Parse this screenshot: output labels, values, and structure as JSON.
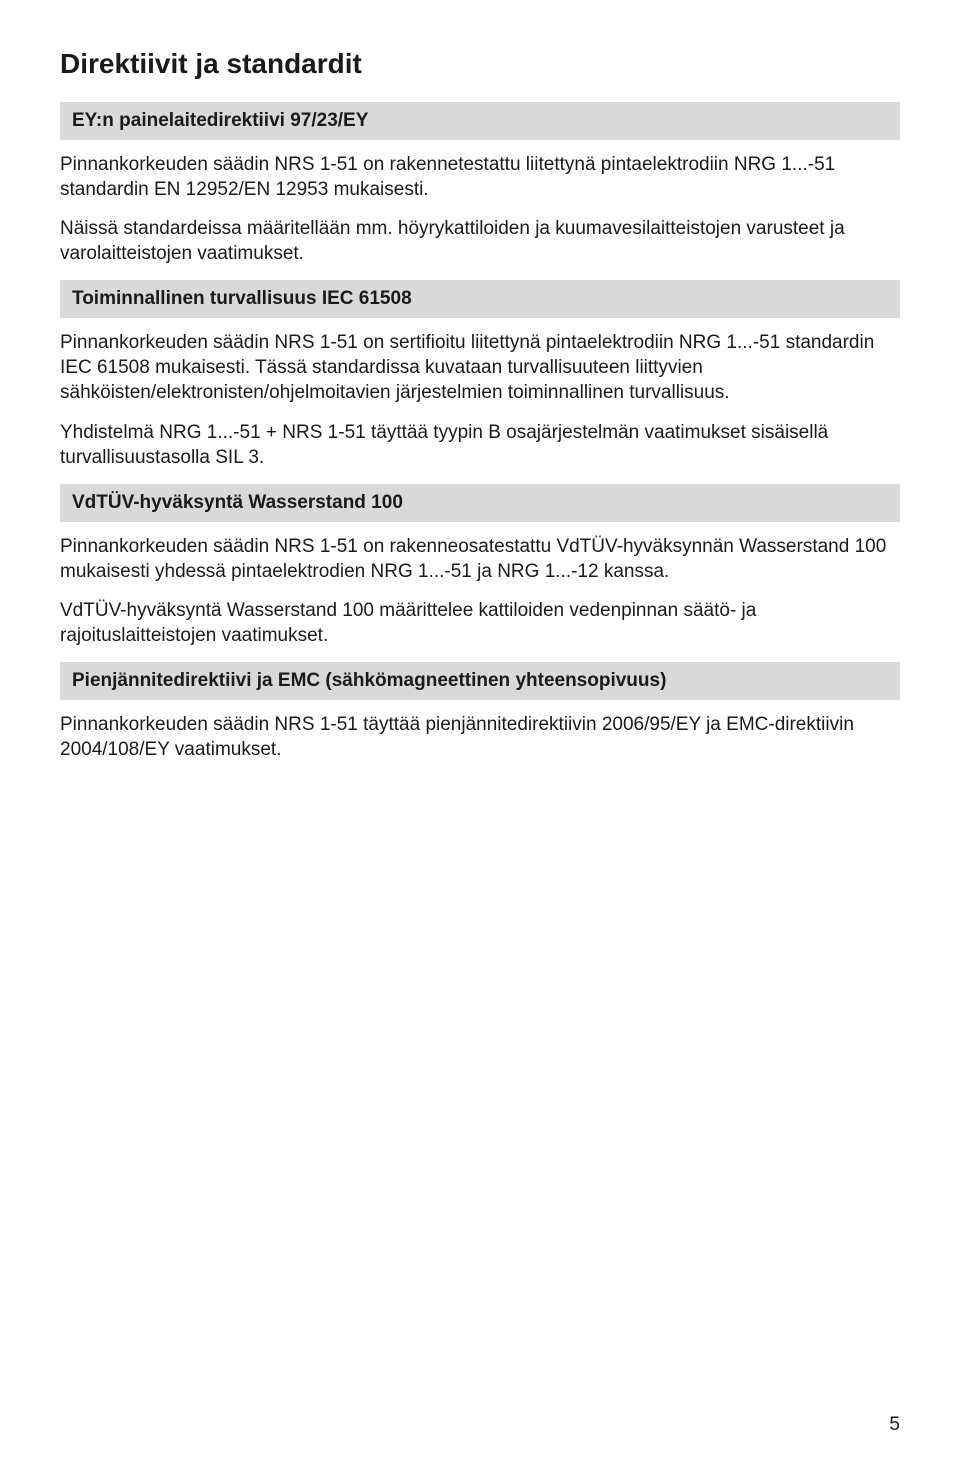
{
  "title": "Direktiivit ja standardit",
  "sections": [
    {
      "heading": "EY:n painelaitedirektiivi 97/23/EY",
      "paragraphs": [
        "Pinnankorkeuden säädin NRS 1-51 on rakennetestattu liitettynä pintaelektrodiin NRG 1...-51 standardin EN 12952/EN 12953 mukaisesti.",
        "Näissä standardeissa määritellään mm. höyrykattiloiden ja kuumavesilaitteistojen varusteet ja varolaitteistojen vaatimukset."
      ]
    },
    {
      "heading": "Toiminnallinen turvallisuus IEC 61508",
      "paragraphs": [
        "Pinnankorkeuden säädin NRS 1-51 on sertifioitu liitettynä pintaelektrodiin NRG 1...-51 standardin IEC 61508 mukaisesti. Tässä standardissa kuvataan turvallisuuteen liittyvien sähköisten/elektronisten/ohjelmoitavien järjestelmien toiminnallinen turvallisuus.",
        "Yhdistelmä NRG 1...-51 + NRS 1-51 täyttää tyypin B osajärjestelmän vaatimukset sisäisellä turvallisuustasolla SIL 3."
      ]
    },
    {
      "heading": "VdTÜV-hyväksyntä Wasserstand 100",
      "paragraphs": [
        "Pinnankorkeuden säädin NRS 1-51 on rakenneosatestattu VdTÜV-hyväksynnän Wasserstand 100 mukaisesti yhdessä pintaelektrodien NRG 1...-51 ja NRG 1...-12 kanssa.",
        "VdTÜV-hyväksyntä Wasserstand 100 määrittelee kattiloiden vedenpinnan säätö- ja rajoituslaitteistojen vaatimukset."
      ]
    },
    {
      "heading": "Pienjännitedirektiivi ja EMC (sähkömagneettinen yhteensopivuus)",
      "paragraphs": [
        "Pinnankorkeuden säädin NRS 1-51 täyttää pienjännitedirektiivin 2006/95/EY ja EMC-direktiivin 2004/108/EY vaatimukset."
      ]
    }
  ],
  "page_number": "5",
  "colors": {
    "heading_bg": "#d9d9d9",
    "text": "#1a1a1a",
    "page_bg": "#ffffff"
  }
}
